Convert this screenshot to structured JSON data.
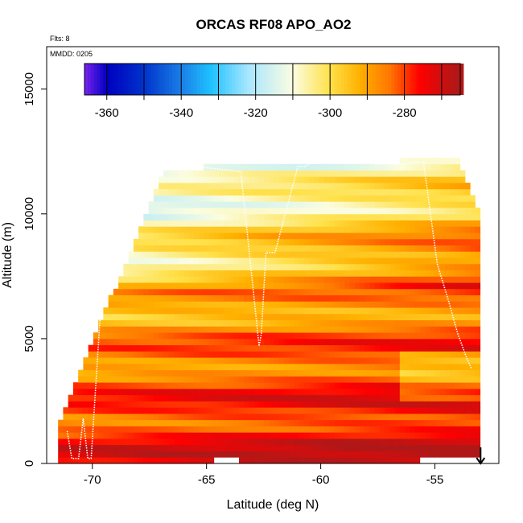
{
  "chart_data": {
    "type": "heatmap",
    "title": "ORCAS RF08 APO_AO2",
    "subtitle_flights": "Flts: 8",
    "subtitle_date": "MMDD: 0205",
    "xlabel": "Latitude (deg N)",
    "ylabel": "Altitude (m)",
    "xlim": [
      -72,
      -52.2
    ],
    "ylim": [
      0,
      16700
    ],
    "x_ticks": [
      -70,
      -65,
      -60,
      -55
    ],
    "x_tick_labels": [
      "-70",
      "-65",
      "-60",
      "-55"
    ],
    "y_ticks": [
      0,
      5000,
      10000,
      15000
    ],
    "y_tick_labels": [
      "0",
      "5000",
      "10000",
      "15000"
    ],
    "colorbar": {
      "range": [
        -366,
        -265
      ],
      "ticks": [
        -360,
        -340,
        -320,
        -300,
        -280
      ],
      "tick_labels": [
        "-360",
        "-340",
        "-320",
        "-300",
        "-280"
      ],
      "colors": [
        "#7a22f0",
        "#0000c0",
        "#0033cc",
        "#1a7fe6",
        "#1fc2ff",
        "#a8e6ff",
        "#fbfde0",
        "#ffe14a",
        "#ffb100",
        "#ff7700",
        "#ff0000",
        "#b01818"
      ],
      "color_stops": [
        -366,
        -360,
        -350,
        -340,
        -332,
        -322,
        -310,
        -300,
        -292,
        -284,
        -276,
        -266
      ]
    },
    "field_extent": {
      "west_lat": -71.5,
      "east_lat": -53.2,
      "bottom_alt": 0,
      "top_alt": 12200,
      "top_alt_west": 11800,
      "top_alt_east_lat": -54.0
    },
    "flight_track": {
      "lat": [
        -71.1,
        -70.9,
        -70.6,
        -70.4,
        -70.2,
        -70.05,
        -69.9,
        -69.6,
        -69.2,
        -68.8,
        -68.2,
        -67.6,
        -67.3,
        -66.5,
        -65.5,
        -64.5,
        -63.5,
        -62.7,
        -62.6,
        -62.4,
        -62.0,
        -61.0,
        -60.8,
        -60.7,
        -60.5,
        -60.0,
        -59.6,
        -59.3,
        -59.0,
        -58.6,
        -58.3,
        -58.0,
        -57.6,
        -57.3,
        -57.1,
        -56.9,
        -56.3,
        -55.5,
        -54.9,
        -54.4,
        -54.0,
        -53.6,
        -53.4
      ],
      "alt": [
        1300,
        200,
        200,
        1800,
        200,
        200,
        2400,
        6700,
        8600,
        10300,
        11900,
        11800,
        11700,
        11900,
        11900,
        11800,
        11700,
        4700,
        5200,
        8450,
        8450,
        11900,
        11900,
        11900,
        12000,
        12100,
        12150,
        12200,
        12200,
        12200,
        12100,
        12100,
        12000,
        12000,
        12000,
        12000,
        12000,
        12100,
        8000,
        6500,
        5200,
        4200,
        3800
      ]
    },
    "arrow_marker_lat": -53.0
  }
}
